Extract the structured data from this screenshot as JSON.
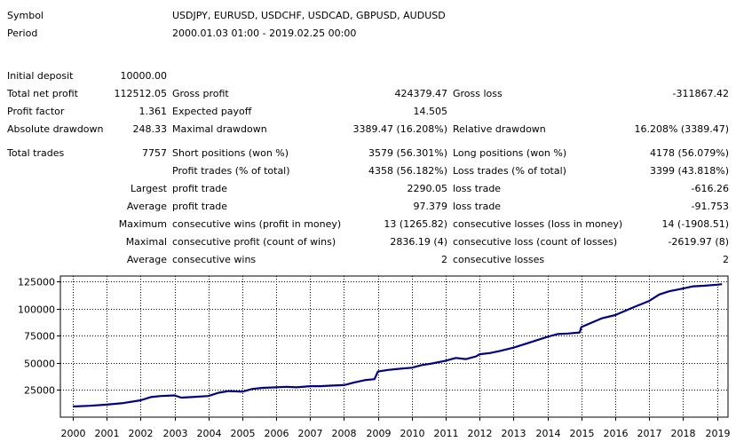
{
  "header": {
    "symbol_label": "Symbol",
    "symbol_value": "USDJPY, EURUSD, USDCHF, USDCAD, GBPUSD, AUDUSD",
    "period_label": "Period",
    "period_value": "2000.01.03 01:00 - 2019.02.25 00:00"
  },
  "stats": {
    "initial_deposit_label": "Initial deposit",
    "initial_deposit": "10000.00",
    "total_net_profit_label": "Total net profit",
    "total_net_profit": "112512.05",
    "gross_profit_label": "Gross profit",
    "gross_profit": "424379.47",
    "gross_loss_label": "Gross loss",
    "gross_loss": "-311867.42",
    "profit_factor_label": "Profit factor",
    "profit_factor": "1.361",
    "expected_payoff_label": "Expected payoff",
    "expected_payoff": "14.505",
    "absolute_drawdown_label": "Absolute drawdown",
    "absolute_drawdown": "248.33",
    "maximal_drawdown_label": "Maximal drawdown",
    "maximal_drawdown": "3389.47 (16.208%)",
    "relative_drawdown_label": "Relative drawdown",
    "relative_drawdown": "16.208% (3389.47)",
    "total_trades_label": "Total trades",
    "total_trades": "7757",
    "short_positions_label": "Short positions (won %)",
    "short_positions": "3579 (56.301%)",
    "long_positions_label": "Long positions (won %)",
    "long_positions": "4178 (56.079%)",
    "profit_trades_label": "Profit trades (% of total)",
    "profit_trades": "4358 (56.182%)",
    "loss_trades_label": "Loss trades (% of total)",
    "loss_trades": "3399 (43.818%)",
    "largest_label": "Largest",
    "largest_profit_label": "profit trade",
    "largest_profit": "2290.05",
    "largest_loss_label": "loss trade",
    "largest_loss": "-616.26",
    "average_label": "Average",
    "average_profit_label": "profit trade",
    "average_profit": "97.379",
    "average_loss_label": "loss trade",
    "average_loss": "-91.753",
    "maximum_label": "Maximum",
    "max_consec_wins_label": "consecutive wins (profit in money)",
    "max_consec_wins": "13 (1265.82)",
    "max_consec_losses_label": "consecutive losses (loss in money)",
    "max_consec_losses": "14 (-1908.51)",
    "maximal_label": "Maximal",
    "maximal_consec_profit_label": "consecutive profit (count of wins)",
    "maximal_consec_profit": "2836.19 (4)",
    "maximal_consec_loss_label": "consecutive loss (count of losses)",
    "maximal_consec_loss": "-2619.97 (8)",
    "average2_label": "Average",
    "avg_consec_wins_label": "consecutive wins",
    "avg_consec_wins": "2",
    "avg_consec_losses_label": "consecutive losses",
    "avg_consec_losses": "2"
  },
  "chart_data": {
    "type": "line",
    "title": "",
    "xlabel": "",
    "ylabel": "",
    "x_ticks": [
      "2000",
      "2001",
      "2002",
      "2003",
      "2004",
      "2005",
      "2006",
      "2007",
      "2008",
      "2009",
      "2010",
      "2011",
      "2012",
      "2013",
      "2014",
      "2015",
      "2016",
      "2017",
      "2018",
      "2019"
    ],
    "y_ticks": [
      25000,
      50000,
      75000,
      100000,
      125000
    ],
    "xlim": [
      2000.0,
      2019.17
    ],
    "ylim": [
      0,
      130000
    ],
    "grid": true,
    "line_color": "#000080",
    "series": [
      {
        "x": [
          2000.0,
          2000.5,
          2001.0,
          2001.5,
          2002.0,
          2002.3,
          2002.6,
          2003.0,
          2003.2,
          2003.5,
          2004.0,
          2004.3,
          2004.6,
          2005.0,
          2005.3,
          2005.6,
          2006.0,
          2006.3,
          2006.6,
          2007.0,
          2007.3,
          2007.6,
          2008.0,
          2008.3,
          2008.6,
          2008.9,
          2009.0,
          2009.3,
          2009.6,
          2010.0,
          2010.3,
          2010.6,
          2011.0,
          2011.3,
          2011.6,
          2011.9,
          2012.0,
          2012.3,
          2012.6,
          2013.0,
          2013.3,
          2013.6,
          2014.0,
          2014.3,
          2014.6,
          2014.95,
          2015.0,
          2015.3,
          2015.6,
          2016.0,
          2016.3,
          2016.6,
          2017.0,
          2017.3,
          2017.6,
          2018.0,
          2018.3,
          2018.6,
          2019.0,
          2019.15
        ],
        "y": [
          9800,
          10500,
          11500,
          13000,
          15500,
          18500,
          19500,
          20000,
          18000,
          18500,
          19500,
          22500,
          24000,
          23500,
          26000,
          27000,
          27500,
          28000,
          27500,
          28500,
          28500,
          29000,
          29500,
          32000,
          34000,
          35000,
          42000,
          43500,
          44500,
          45500,
          48000,
          49500,
          52000,
          54500,
          53500,
          56000,
          58000,
          59000,
          61000,
          64000,
          67000,
          70000,
          74000,
          76500,
          77000,
          78000,
          83000,
          87000,
          91000,
          94000,
          98000,
          102000,
          107000,
          113000,
          116000,
          118500,
          120500,
          121000,
          122000,
          122500
        ]
      }
    ]
  }
}
